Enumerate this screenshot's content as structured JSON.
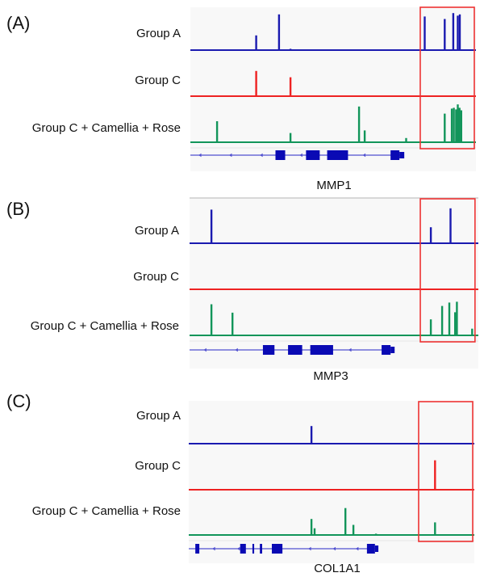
{
  "colors": {
    "group_a": "#1a1ab0",
    "group_c": "#ee2222",
    "combo": "#12955a",
    "gene": "#0a0ab4",
    "gene_line": "#5050d0",
    "highlight": "#ee3333",
    "track_bg": "#f8f8f8",
    "top_rule": "#cccccc"
  },
  "chart_data": [
    {
      "type": "bar",
      "panel": "(A)",
      "gene": "MMP1",
      "xlim": [
        0,
        100
      ],
      "tracks": [
        {
          "name": "Group A",
          "color_key": "group_a",
          "peaks": [
            {
              "x": 23,
              "h": 0.35
            },
            {
              "x": 31,
              "h": 0.85
            },
            {
              "x": 35,
              "h": 0.03
            },
            {
              "x": 82,
              "h": 0.8
            },
            {
              "x": 89,
              "h": 0.74
            },
            {
              "x": 92,
              "h": 0.88
            },
            {
              "x": 93.6,
              "h": 0.82
            },
            {
              "x": 94.3,
              "h": 0.85
            }
          ]
        },
        {
          "name": "Group C",
          "color_key": "group_c",
          "peaks": [
            {
              "x": 23,
              "h": 0.6
            },
            {
              "x": 35,
              "h": 0.45
            }
          ]
        },
        {
          "name": "Group C + Camellia + Rose",
          "color_key": "combo",
          "peaks": [
            {
              "x": 9.3,
              "h": 0.5
            },
            {
              "x": 35,
              "h": 0.22
            },
            {
              "x": 59,
              "h": 0.85
            },
            {
              "x": 61,
              "h": 0.28
            },
            {
              "x": 75.5,
              "h": 0.1
            },
            {
              "x": 89,
              "h": 0.68
            },
            {
              "x": 91.5,
              "h": 0.8
            },
            {
              "x": 92.2,
              "h": 0.82
            },
            {
              "x": 93,
              "h": 0.78
            },
            {
              "x": 93.6,
              "h": 0.9
            },
            {
              "x": 94.2,
              "h": 0.82
            },
            {
              "x": 94.8,
              "h": 0.76
            }
          ]
        }
      ],
      "gene_model": {
        "start": 0,
        "end": 74.5,
        "exons": [
          [
            29.8,
            33.2
          ],
          [
            40.5,
            45.3
          ],
          [
            47.9,
            55.2
          ],
          [
            70.1,
            73.2
          ]
        ],
        "utr": [
          [
            73.2,
            74.9
          ]
        ],
        "arrows": [
          3.4,
          14.1,
          24.9,
          38.8,
          60.9
        ]
      },
      "highlight": {
        "x_from": 80.5,
        "x_to": 100
      }
    },
    {
      "type": "bar",
      "panel": "(B)",
      "gene": "MMP3",
      "xlim": [
        0,
        100
      ],
      "tracks": [
        {
          "name": "Group A",
          "color_key": "group_a",
          "peaks": [
            {
              "x": 7.5,
              "h": 0.8
            },
            {
              "x": 83.5,
              "h": 0.38
            },
            {
              "x": 90.3,
              "h": 0.83
            }
          ]
        },
        {
          "name": "Group C",
          "color_key": "group_c",
          "peaks": []
        },
        {
          "name": "Group C + Camellia + Rose",
          "color_key": "combo",
          "peaks": [
            {
              "x": 7.5,
              "h": 0.74
            },
            {
              "x": 14.8,
              "h": 0.54
            },
            {
              "x": 83.5,
              "h": 0.38
            },
            {
              "x": 87.4,
              "h": 0.7
            },
            {
              "x": 89.9,
              "h": 0.78
            },
            {
              "x": 91.9,
              "h": 0.55
            },
            {
              "x": 92.5,
              "h": 0.8
            },
            {
              "x": 97.8,
              "h": 0.16
            }
          ]
        }
      ],
      "gene_model": {
        "start": 0,
        "end": 71,
        "exons": [
          [
            25.4,
            29.4
          ],
          [
            34.1,
            39
          ],
          [
            41.8,
            49.7
          ],
          [
            66.5,
            69.6
          ]
        ],
        "utr": [
          [
            69.6,
            71
          ]
        ],
        "arrows": [
          5.4,
          16.3,
          55.6
        ]
      },
      "highlight": {
        "x_from": 79.9,
        "x_to": 99.4
      }
    },
    {
      "type": "bar",
      "panel": "(C)",
      "gene": "COL1A1",
      "xlim": [
        0,
        100
      ],
      "tracks": [
        {
          "name": "Group A",
          "color_key": "group_a",
          "peaks": [
            {
              "x": 42.9,
              "h": 0.42
            }
          ]
        },
        {
          "name": "Group C",
          "color_key": "group_c",
          "peaks": [
            {
              "x": 86.2,
              "h": 0.7
            }
          ]
        },
        {
          "name": "Group C + Camellia + Rose",
          "color_key": "combo",
          "peaks": [
            {
              "x": 42.9,
              "h": 0.38
            },
            {
              "x": 44,
              "h": 0.16
            },
            {
              "x": 54.8,
              "h": 0.64
            },
            {
              "x": 57.6,
              "h": 0.24
            },
            {
              "x": 65.5,
              "h": 0.03
            },
            {
              "x": 86.2,
              "h": 0.3
            }
          ]
        }
      ],
      "gene_model": {
        "start": 0,
        "end": 66.4,
        "exons": [
          [
            2.3,
            3.7
          ],
          [
            18,
            20
          ],
          [
            22.3,
            22.9
          ],
          [
            24.9,
            25.7
          ],
          [
            29.1,
            32.8
          ],
          [
            62.4,
            65.2
          ]
        ],
        "utr": [
          [
            65.2,
            66.4
          ]
        ],
        "arrows": [
          8.8,
          17.5,
          42.4,
          51,
          59
        ]
      },
      "highlight": {
        "x_from": 80.5,
        "x_to": 100
      }
    }
  ]
}
